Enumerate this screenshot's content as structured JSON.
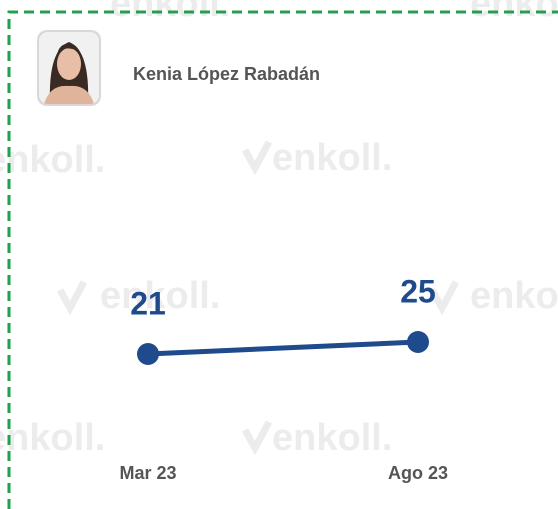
{
  "chart_data": {
    "type": "line",
    "person": "Kenia López Rabadán",
    "watermark": "enkoll.",
    "categories": [
      "Mar 23",
      "Ago 23"
    ],
    "series": [
      {
        "color": "#1f4a8c",
        "values": [
          21,
          25
        ]
      }
    ]
  }
}
